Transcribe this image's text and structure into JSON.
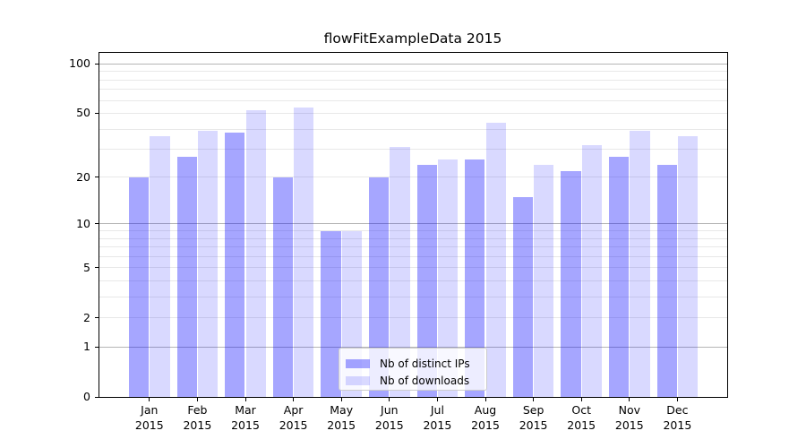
{
  "title": "flowFitExampleData 2015",
  "chart_data": {
    "type": "bar",
    "title": "flowFitExampleData 2015",
    "categories": [
      "Jan",
      "Feb",
      "Mar",
      "Apr",
      "May",
      "Jun",
      "Jul",
      "Aug",
      "Sep",
      "Oct",
      "Nov",
      "Dec"
    ],
    "year_label": "2015",
    "series": [
      {
        "name": "Nb of distinct IPs",
        "color": "rgba(0,0,255,0.35)",
        "values": [
          20,
          27,
          38,
          20,
          9,
          20,
          24,
          26,
          15,
          22,
          27,
          24
        ]
      },
      {
        "name": "Nb of downloads",
        "color": "rgba(0,0,255,0.15)",
        "values": [
          36,
          39,
          52,
          54,
          9,
          31,
          26,
          44,
          24,
          32,
          39,
          36
        ]
      }
    ],
    "yscale": "log1p",
    "ylim": [
      0,
      116
    ],
    "yticks": [
      0,
      1,
      2,
      5,
      10,
      20,
      50,
      100
    ],
    "major_gridlines": [
      1,
      10,
      100
    ],
    "minor_gridlines": [
      2,
      3,
      4,
      5,
      6,
      7,
      8,
      9,
      20,
      30,
      40,
      50,
      60,
      70,
      80,
      90
    ],
    "grid": true,
    "legend_position": "lower center",
    "axis_color": "#000000",
    "major_grid_color": "#b5b5b5",
    "minor_grid_color": "#e8e8e8"
  }
}
